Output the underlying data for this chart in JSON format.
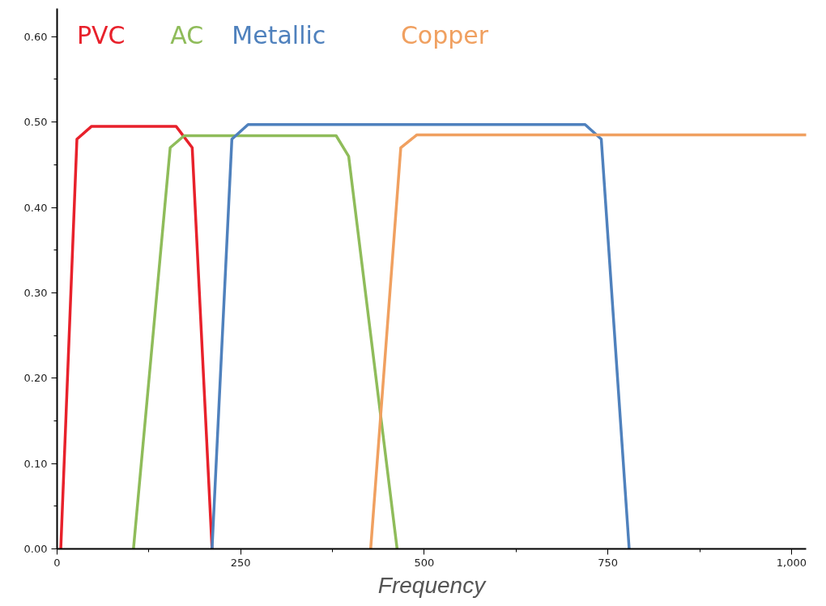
{
  "chart_data": {
    "type": "line",
    "xlabel": "Frequency",
    "xlim": [
      0,
      1020
    ],
    "ylim": [
      0,
      0.633
    ],
    "xticks": [
      0,
      250,
      500,
      750,
      {
        "value": 1000,
        "label": "1,000"
      }
    ],
    "yticks": [
      {
        "value": 0,
        "label": "0.00"
      },
      {
        "value": 0.1,
        "label": "0.10"
      },
      {
        "value": 0.2,
        "label": "0.20"
      },
      {
        "value": 0.3,
        "label": "0.30"
      },
      {
        "value": 0.4,
        "label": "0.40"
      },
      {
        "value": 0.5,
        "label": "0.50"
      },
      {
        "value": 0.6,
        "label": "0.60"
      }
    ],
    "grid": false,
    "legend": false,
    "marker": "none",
    "line_style": "solid",
    "series": [
      {
        "name": "PVC",
        "color": "#e8212b",
        "x": [
          5,
          27,
          47,
          162,
          184,
          211
        ],
        "values": [
          0,
          0.48,
          0.495,
          0.495,
          0.47,
          0
        ]
      },
      {
        "name": "AC",
        "color": "#8fbc5a",
        "x": [
          104,
          154,
          173,
          380,
          397,
          463
        ],
        "values": [
          0,
          0.47,
          0.484,
          0.484,
          0.46,
          0
        ]
      },
      {
        "name": "Metallic",
        "color": "#4f81bd",
        "x": [
          211,
          238,
          260,
          719,
          741,
          779
        ],
        "values": [
          0,
          0.48,
          0.497,
          0.497,
          0.48,
          0
        ]
      },
      {
        "name": "Copper",
        "color": "#f0a060",
        "x": [
          427,
          468,
          490,
          1020
        ],
        "values": [
          0,
          0.47,
          0.485,
          0.485
        ]
      }
    ]
  }
}
